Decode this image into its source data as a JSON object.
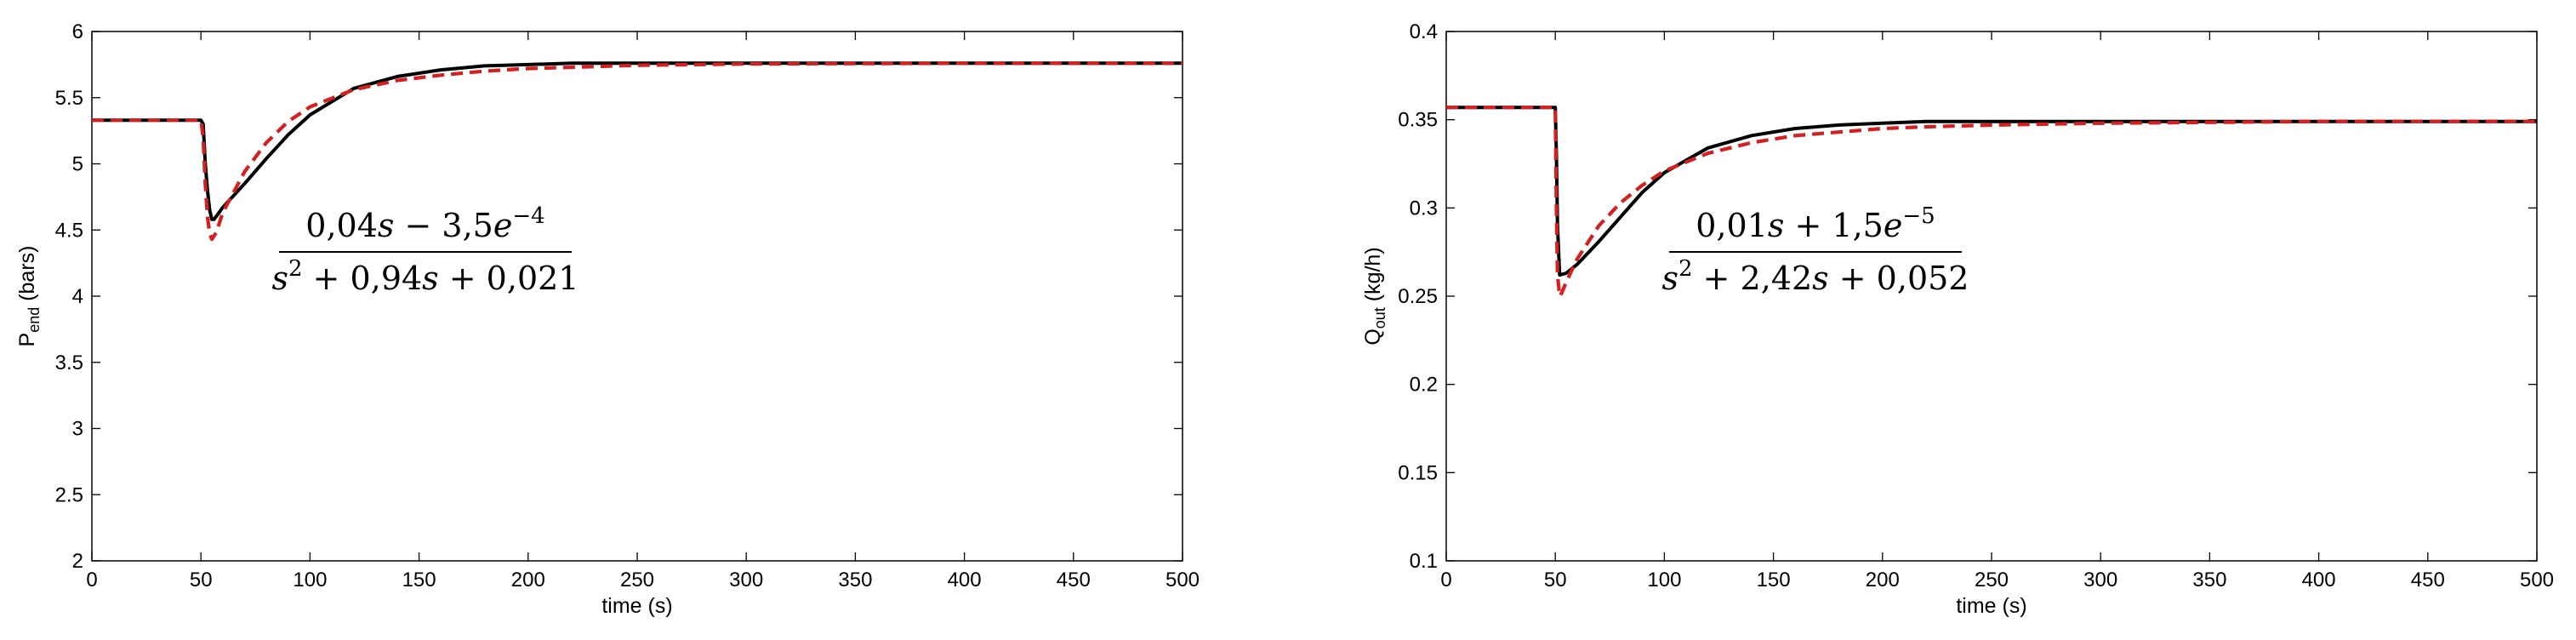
{
  "chart_data": [
    {
      "type": "line",
      "xlabel": "time (s)",
      "ylabel": {
        "main": "P",
        "sub": "end",
        "unit": " (bars)"
      },
      "xlim": [
        0,
        500
      ],
      "ylim": [
        2,
        6
      ],
      "xticks": [
        "0",
        "50",
        "100",
        "150",
        "200",
        "250",
        "300",
        "350",
        "400",
        "450",
        "500"
      ],
      "yticks": [
        "2",
        "2.5",
        "3",
        "3.5",
        "4",
        "4.5",
        "5",
        "5.5",
        "6"
      ],
      "grid": false,
      "annotation": {
        "numerator": [
          "0,04",
          "s",
          " − 3,5",
          "e",
          "−4"
        ],
        "denominator": [
          "s",
          "2",
          " + 0,94",
          "s",
          " + 0,021"
        ]
      },
      "series": [
        {
          "color": "#000000",
          "style": "solid",
          "x": [
            0,
            50,
            51,
            52,
            53,
            54,
            55,
            56,
            60,
            70,
            80,
            90,
            100,
            120,
            140,
            160,
            180,
            200,
            220,
            250,
            300,
            400,
            500
          ],
          "y": [
            5.33,
            5.33,
            5.3,
            5.0,
            4.8,
            4.65,
            4.58,
            4.58,
            4.67,
            4.85,
            5.04,
            5.22,
            5.37,
            5.57,
            5.66,
            5.71,
            5.74,
            5.75,
            5.76,
            5.76,
            5.76,
            5.76,
            5.76
          ]
        },
        {
          "color": "#d42020",
          "style": "dashed",
          "x": [
            0,
            50,
            51,
            52,
            53,
            54,
            55,
            57,
            60,
            70,
            80,
            90,
            100,
            120,
            140,
            160,
            180,
            200,
            220,
            250,
            300,
            400,
            500
          ],
          "y": [
            5.33,
            5.33,
            5.2,
            4.85,
            4.6,
            4.47,
            4.43,
            4.48,
            4.63,
            4.94,
            5.16,
            5.32,
            5.43,
            5.56,
            5.63,
            5.67,
            5.7,
            5.72,
            5.73,
            5.745,
            5.755,
            5.76,
            5.76
          ]
        },
        {
          "color": "#000000",
          "style": "dotted",
          "x": [
            0,
            50,
            300,
            500
          ],
          "y": [
            5.33,
            5.33,
            5.76,
            5.76
          ],
          "hidden_segment": true
        }
      ]
    },
    {
      "type": "line",
      "xlabel": "time (s)",
      "ylabel": {
        "main": "Q",
        "sub": "out",
        "unit": " (kg/h)"
      },
      "xlim": [
        0,
        500
      ],
      "ylim": [
        0.1,
        0.4
      ],
      "xticks": [
        "0",
        "50",
        "100",
        "150",
        "200",
        "250",
        "300",
        "350",
        "400",
        "450",
        "500"
      ],
      "yticks": [
        "0.1",
        "0.15",
        "0.2",
        "0.25",
        "0.3",
        "0.35",
        "0.4"
      ],
      "grid": false,
      "annotation": {
        "numerator": [
          "0,01",
          "s",
          " + 1,5",
          "e",
          "−5"
        ],
        "denominator": [
          "s",
          "2",
          " + 2,42",
          "s",
          " + 0,052"
        ]
      },
      "series": [
        {
          "color": "#000000",
          "style": "solid",
          "x": [
            0,
            50,
            50.5,
            51,
            52,
            55,
            60,
            70,
            80,
            90,
            100,
            120,
            140,
            160,
            180,
            200,
            220,
            250,
            300,
            400,
            500
          ],
          "y": [
            0.357,
            0.357,
            0.33,
            0.29,
            0.262,
            0.263,
            0.268,
            0.281,
            0.295,
            0.309,
            0.32,
            0.334,
            0.341,
            0.345,
            0.347,
            0.348,
            0.349,
            0.349,
            0.349,
            0.349,
            0.349
          ]
        },
        {
          "color": "#d42020",
          "style": "dashed",
          "x": [
            0,
            50,
            50.5,
            51,
            52,
            53,
            55,
            60,
            70,
            80,
            90,
            100,
            120,
            140,
            160,
            180,
            200,
            220,
            250,
            300,
            400,
            500
          ],
          "y": [
            0.357,
            0.357,
            0.3,
            0.262,
            0.25,
            0.252,
            0.258,
            0.271,
            0.29,
            0.303,
            0.313,
            0.321,
            0.331,
            0.337,
            0.341,
            0.343,
            0.345,
            0.346,
            0.347,
            0.348,
            0.349,
            0.349
          ]
        }
      ]
    }
  ]
}
